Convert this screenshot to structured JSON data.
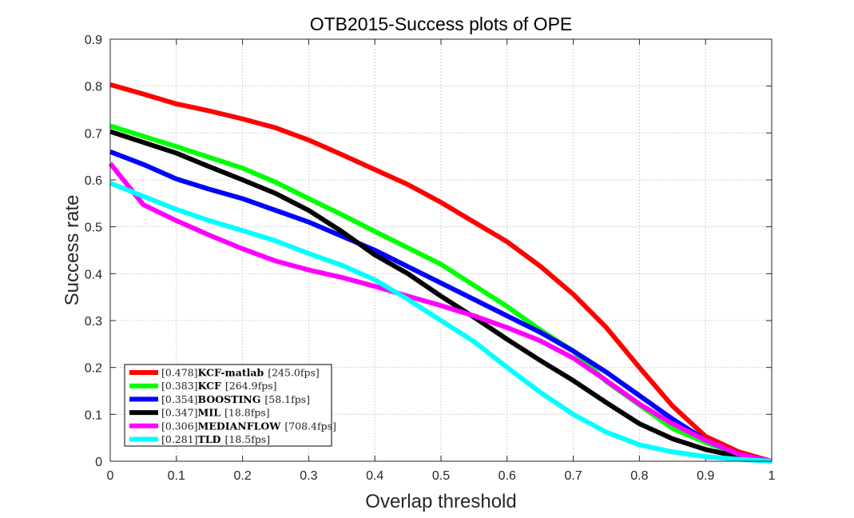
{
  "chart_data": {
    "type": "line",
    "title": "OTB2015-Success plots of OPE",
    "xlabel": "Overlap threshold",
    "ylabel": "Success rate",
    "xlim": [
      0,
      1
    ],
    "ylim": [
      0,
      0.9
    ],
    "xticks": [
      "0",
      "0.1",
      "0.2",
      "0.3",
      "0.4",
      "0.5",
      "0.6",
      "0.7",
      "0.8",
      "0.9",
      "1"
    ],
    "yticks": [
      "0",
      "0.1",
      "0.2",
      "0.3",
      "0.4",
      "0.5",
      "0.6",
      "0.7",
      "0.8",
      "0.9"
    ],
    "grid": true,
    "legend_position": "bottom-left",
    "x": [
      0,
      0.05,
      0.1,
      0.15,
      0.2,
      0.25,
      0.3,
      0.35,
      0.4,
      0.45,
      0.5,
      0.55,
      0.6,
      0.65,
      0.7,
      0.75,
      0.8,
      0.85,
      0.9,
      0.95,
      1
    ],
    "series": [
      {
        "score": "[0.478]",
        "name": "KCF-matlab",
        "fps": "[245.0fps]",
        "color": "#ff0000",
        "values": [
          0.803,
          0.783,
          0.762,
          0.747,
          0.73,
          0.711,
          0.685,
          0.654,
          0.622,
          0.59,
          0.552,
          0.51,
          0.468,
          0.416,
          0.356,
          0.285,
          0.2,
          0.118,
          0.053,
          0.02,
          0
        ]
      },
      {
        "score": "[0.383]",
        "name": "KCF",
        "fps": "[264.9fps]",
        "color": "#00ff00",
        "values": [
          0.715,
          0.693,
          0.671,
          0.648,
          0.625,
          0.595,
          0.56,
          0.526,
          0.49,
          0.455,
          0.42,
          0.375,
          0.33,
          0.28,
          0.235,
          0.17,
          0.12,
          0.07,
          0.04,
          0.015,
          0
        ]
      },
      {
        "score": "[0.354]",
        "name": "BOOSTING",
        "fps": "[58.1fps]",
        "color": "#0000ff",
        "values": [
          0.66,
          0.633,
          0.602,
          0.58,
          0.56,
          0.535,
          0.51,
          0.48,
          0.45,
          0.415,
          0.38,
          0.345,
          0.31,
          0.275,
          0.235,
          0.19,
          0.14,
          0.09,
          0.045,
          0.015,
          0
        ]
      },
      {
        "score": "[0.347]",
        "name": "MIL",
        "fps": "[18.8fps]",
        "color": "#000000",
        "values": [
          0.703,
          0.68,
          0.657,
          0.628,
          0.6,
          0.571,
          0.535,
          0.49,
          0.44,
          0.4,
          0.352,
          0.307,
          0.26,
          0.215,
          0.172,
          0.125,
          0.08,
          0.048,
          0.025,
          0.01,
          0
        ]
      },
      {
        "score": "[0.306]",
        "name": "MEDIANFLOW",
        "fps": "[708.4fps]",
        "color": "#ff00ff",
        "values": [
          0.635,
          0.547,
          0.513,
          0.482,
          0.453,
          0.427,
          0.408,
          0.392,
          0.373,
          0.352,
          0.332,
          0.31,
          0.285,
          0.257,
          0.22,
          0.172,
          0.122,
          0.08,
          0.045,
          0.015,
          0
        ]
      },
      {
        "score": "[0.281]",
        "name": "TLD",
        "fps": "[18.5fps]",
        "color": "#00ffff",
        "values": [
          0.593,
          0.565,
          0.537,
          0.513,
          0.492,
          0.47,
          0.443,
          0.418,
          0.387,
          0.345,
          0.3,
          0.255,
          0.2,
          0.147,
          0.1,
          0.062,
          0.035,
          0.02,
          0.01,
          0.004,
          0
        ]
      }
    ]
  }
}
